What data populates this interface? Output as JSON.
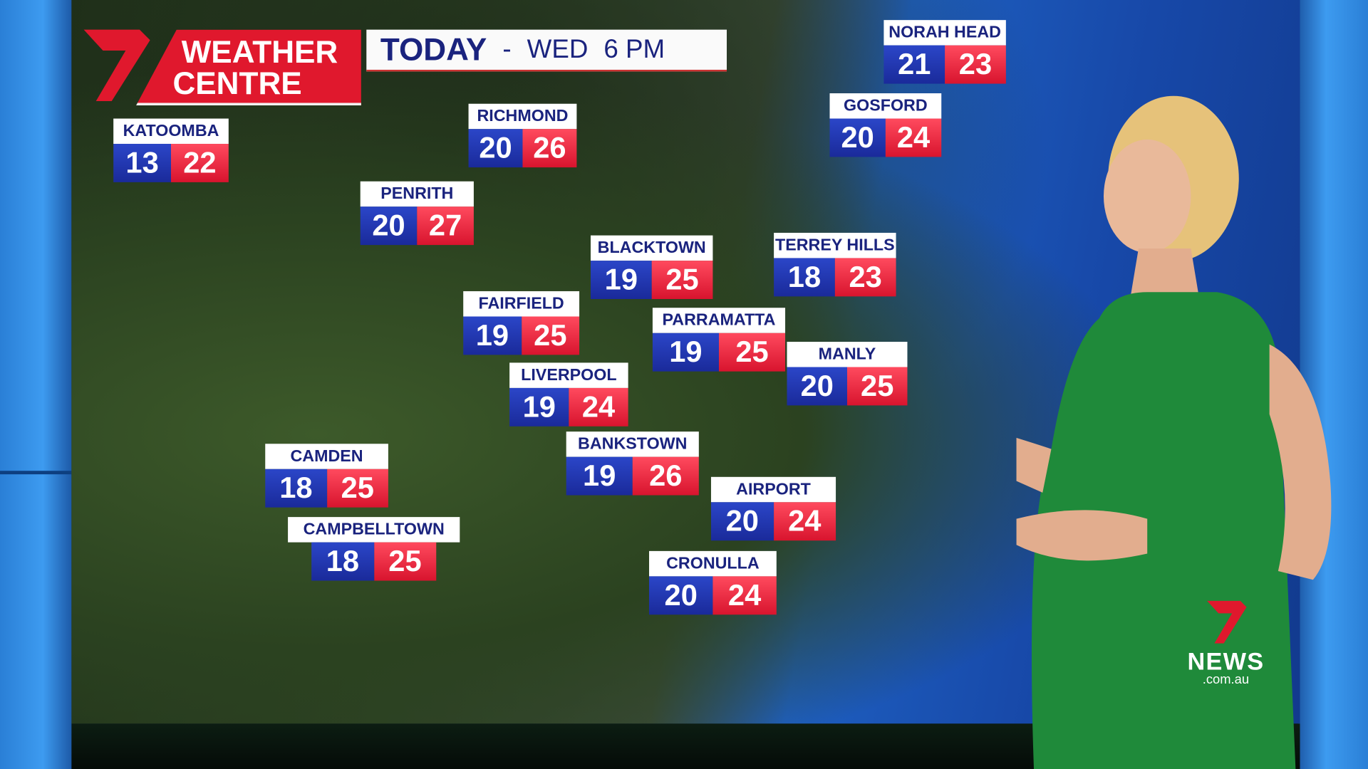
{
  "header": {
    "brand_line1": "WEATHER",
    "brand_line2": "CENTRE",
    "title": "TODAY",
    "separator": "-",
    "day": "WED",
    "time": "6 PM"
  },
  "colors": {
    "min_box": "#1a2a9a",
    "max_box": "#d8142e",
    "brand_red": "#e0182d",
    "label_text": "#1a237e"
  },
  "locations": [
    {
      "name": "KATOOMBA",
      "min": "13",
      "max": "22"
    },
    {
      "name": "RICHMOND",
      "min": "20",
      "max": "26"
    },
    {
      "name": "PENRITH",
      "min": "20",
      "max": "27"
    },
    {
      "name": "NORAH HEAD",
      "min": "21",
      "max": "23"
    },
    {
      "name": "GOSFORD",
      "min": "20",
      "max": "24"
    },
    {
      "name": "BLACKTOWN",
      "min": "19",
      "max": "25"
    },
    {
      "name": "TERREY HILLS",
      "min": "18",
      "max": "23"
    },
    {
      "name": "FAIRFIELD",
      "min": "19",
      "max": "25"
    },
    {
      "name": "PARRAMATTA",
      "min": "19",
      "max": "25"
    },
    {
      "name": "MANLY",
      "min": "20",
      "max": "25"
    },
    {
      "name": "LIVERPOOL",
      "min": "19",
      "max": "24"
    },
    {
      "name": "BANKSTOWN",
      "min": "19",
      "max": "26"
    },
    {
      "name": "CAMDEN",
      "min": "18",
      "max": "25"
    },
    {
      "name": "CAMPBELLTOWN",
      "min": "18",
      "max": "25"
    },
    {
      "name": "AIRPORT",
      "min": "20",
      "max": "24"
    },
    {
      "name": "CRONULLA",
      "min": "20",
      "max": "24"
    }
  ],
  "watermark": {
    "brand": "NEWS",
    "domain": ".com.au"
  }
}
